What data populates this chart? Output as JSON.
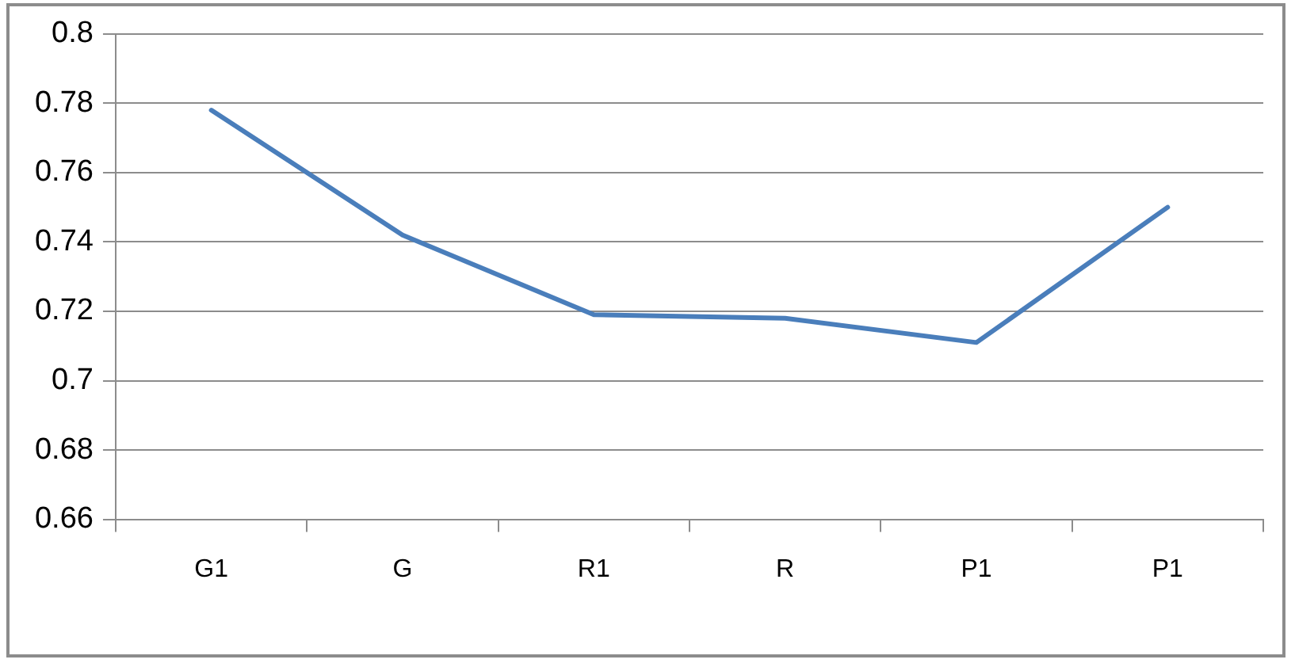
{
  "chart_data": {
    "type": "line",
    "categories": [
      "G1",
      "G",
      "R1",
      "R",
      "P1",
      "P1"
    ],
    "series": [
      {
        "color": "#4a7ebb",
        "values": [
          0.778,
          0.742,
          0.719,
          0.718,
          0.711,
          0.75
        ]
      }
    ],
    "ylim": [
      0.66,
      0.8
    ],
    "yticks": [
      0.66,
      0.68,
      0.7,
      0.72,
      0.74,
      0.76,
      0.78,
      0.8
    ],
    "grid": "y",
    "legend": false,
    "marker": "none",
    "line_style": "solid"
  }
}
